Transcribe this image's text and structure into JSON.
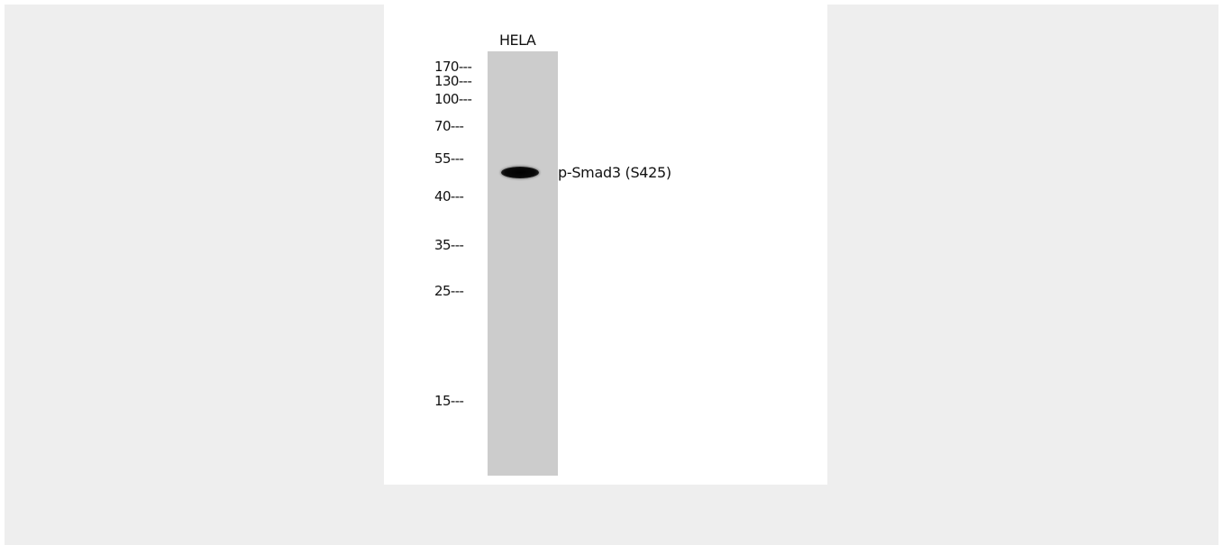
{
  "blot": {
    "lane_label": "HELA",
    "band_label": "p-Smad3 (S425)",
    "markers": [
      {
        "label": "170---"
      },
      {
        "label": "130---"
      },
      {
        "label": "100---"
      },
      {
        "label": "70---"
      },
      {
        "label": "55---"
      },
      {
        "label": "40---"
      },
      {
        "label": "35---"
      },
      {
        "label": "25---"
      },
      {
        "label": "15---"
      }
    ]
  }
}
